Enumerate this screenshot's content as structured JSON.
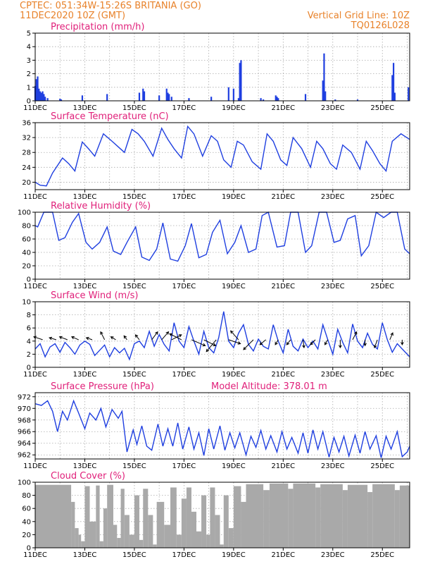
{
  "header": {
    "left_line1": "CPTEC:   051:34W-15:26S  BRITANIA (GO)",
    "left_line2": "11DEC2020 10Z (GMT)",
    "right_line1": "Vertical Grid Line: 10Z",
    "right_line2": "TQ0126L028"
  },
  "colors": {
    "series": "#1f3fe0",
    "cloud": "#a9a9a9",
    "title": "#e0207a",
    "header": "#e8822a"
  },
  "x_tick_labels": [
    "11DEC",
    "13DEC",
    "15DEC",
    "17DEC",
    "19DEC",
    "21DEC",
    "23DEC",
    "25DEC"
  ],
  "chart_data": [
    {
      "type": "bar",
      "title": "Precipitation (mm/h)",
      "ylim": [
        0,
        5
      ],
      "yticks": [
        0,
        1,
        2,
        3,
        4,
        5
      ],
      "x_days": [
        0,
        0.05,
        0.1,
        0.15,
        0.2,
        0.25,
        0.3,
        0.35,
        0.4,
        0.5,
        1.0,
        1.05,
        1.9,
        2.9,
        4.2,
        4.35,
        4.4,
        5.0,
        5.3,
        5.35,
        5.4,
        5.5,
        6.2,
        7.1,
        7.8,
        8.0,
        8.2,
        8.25,
        8.3,
        9.1,
        9.2,
        9.7,
        9.75,
        9.8,
        10.9,
        11.6,
        11.65,
        11.7,
        12.1,
        13.0,
        14.4,
        14.45,
        14.5,
        15.05
      ],
      "values": [
        1.1,
        1.6,
        1.8,
        0.9,
        0.7,
        0.6,
        0.7,
        0.5,
        0.3,
        0.2,
        0.15,
        0.1,
        0.4,
        0.5,
        0.6,
        0.9,
        0.7,
        0.4,
        0.9,
        0.6,
        0.5,
        0.3,
        0.2,
        0.3,
        1.0,
        0.9,
        0.2,
        2.8,
        3.0,
        0.2,
        0.1,
        0.4,
        0.3,
        0.2,
        0.5,
        1.5,
        3.5,
        0.7,
        0.1,
        0.1,
        1.9,
        2.8,
        0.6,
        1.0
      ]
    },
    {
      "type": "line",
      "title": "Surface Temperature (nC)",
      "ylim": [
        18,
        36
      ],
      "yticks": [
        20,
        24,
        28,
        32,
        36
      ],
      "x_days": [
        0,
        0.2,
        0.45,
        0.7,
        1.1,
        1.35,
        1.6,
        1.9,
        2.15,
        2.4,
        2.75,
        3.1,
        3.35,
        3.6,
        3.9,
        4.15,
        4.4,
        4.75,
        5.1,
        5.35,
        5.6,
        5.9,
        6.15,
        6.4,
        6.75,
        7.1,
        7.35,
        7.6,
        7.9,
        8.15,
        8.4,
        8.75,
        9.1,
        9.35,
        9.6,
        9.9,
        10.15,
        10.4,
        10.75,
        11.1,
        11.35,
        11.6,
        11.9,
        12.15,
        12.4,
        12.75,
        13.1,
        13.35,
        13.6,
        13.9,
        14.15,
        14.4,
        14.75,
        15.1
      ],
      "values": [
        20.0,
        19.2,
        19.0,
        22.5,
        26.5,
        25.0,
        23.0,
        30.8,
        29.0,
        27.0,
        33.0,
        31.0,
        29.5,
        28.0,
        34.2,
        33.0,
        31.0,
        27.0,
        34.5,
        31.5,
        29.0,
        26.5,
        35.0,
        33.0,
        27.0,
        32.5,
        31.0,
        26.0,
        24.0,
        31.0,
        30.0,
        25.5,
        23.5,
        33.0,
        31.0,
        26.0,
        24.5,
        32.0,
        29.0,
        24.0,
        31.0,
        29.0,
        25.0,
        23.5,
        30.0,
        28.0,
        23.5,
        31.0,
        28.5,
        25.0,
        23.0,
        31.0,
        33.0,
        31.5
      ]
    },
    {
      "type": "line",
      "title": "Relative Humidity (%)",
      "ylim": [
        0,
        100
      ],
      "yticks": [
        0,
        20,
        40,
        60,
        80,
        100
      ],
      "x_days": [
        0,
        0.1,
        0.35,
        0.7,
        0.95,
        1.2,
        1.5,
        1.75,
        2.05,
        2.3,
        2.6,
        2.9,
        3.15,
        3.45,
        3.7,
        4.05,
        4.3,
        4.6,
        4.9,
        5.15,
        5.45,
        5.75,
        6.05,
        6.3,
        6.6,
        6.9,
        7.15,
        7.45,
        7.75,
        8.05,
        8.3,
        8.6,
        8.9,
        9.15,
        9.4,
        9.75,
        10.05,
        10.3,
        10.6,
        10.9,
        11.15,
        11.45,
        11.75,
        12.05,
        12.3,
        12.6,
        12.9,
        13.15,
        13.45,
        13.75,
        14.05,
        14.35,
        14.6,
        14.9,
        15.1
      ],
      "values": [
        80,
        78,
        100,
        100,
        58,
        62,
        85,
        98,
        55,
        45,
        55,
        78,
        42,
        37,
        55,
        78,
        33,
        28,
        45,
        84,
        30,
        27,
        50,
        83,
        32,
        37,
        70,
        88,
        38,
        55,
        80,
        40,
        45,
        95,
        100,
        48,
        50,
        100,
        100,
        40,
        50,
        100,
        100,
        55,
        58,
        90,
        95,
        35,
        50,
        100,
        92,
        100,
        100,
        45,
        38
      ]
    },
    {
      "type": "line",
      "title": "Surface Wind (m/s)",
      "ylim": [
        0,
        10
      ],
      "yticks": [
        0,
        2,
        4,
        6,
        8,
        10
      ],
      "x_days": [
        0,
        0.2,
        0.4,
        0.6,
        0.8,
        1.0,
        1.2,
        1.4,
        1.6,
        1.8,
        2.0,
        2.2,
        2.4,
        2.6,
        2.8,
        3.0,
        3.2,
        3.4,
        3.6,
        3.8,
        4.0,
        4.2,
        4.4,
        4.6,
        4.8,
        5.0,
        5.2,
        5.4,
        5.6,
        5.8,
        6.0,
        6.2,
        6.4,
        6.6,
        6.8,
        7.0,
        7.2,
        7.4,
        7.6,
        7.8,
        8.0,
        8.2,
        8.4,
        8.6,
        8.8,
        9.0,
        9.2,
        9.4,
        9.6,
        9.8,
        10.0,
        10.2,
        10.4,
        10.6,
        10.8,
        11.0,
        11.2,
        11.4,
        11.6,
        11.8,
        12.0,
        12.2,
        12.4,
        12.6,
        12.8,
        13.0,
        13.2,
        13.4,
        13.6,
        13.8,
        14.0,
        14.2,
        14.4,
        14.6,
        14.8,
        15.1
      ],
      "values": [
        2.8,
        3.6,
        1.6,
        3.1,
        3.6,
        2.3,
        3.8,
        3.0,
        2.0,
        3.4,
        4.0,
        3.5,
        1.8,
        2.6,
        3.4,
        1.6,
        3.0,
        2.2,
        2.9,
        1.2,
        3.6,
        4.0,
        3.0,
        5.5,
        3.2,
        5.0,
        3.5,
        2.5,
        6.8,
        4.0,
        3.0,
        6.2,
        4.0,
        2.0,
        5.5,
        3.0,
        2.2,
        4.5,
        8.5,
        4.0,
        3.0,
        5.2,
        6.5,
        3.5,
        2.5,
        4.3,
        3.2,
        2.8,
        6.5,
        4.0,
        2.2,
        5.8,
        3.2,
        2.5,
        4.3,
        3.0,
        4.0,
        2.8,
        6.5,
        4.2,
        2.0,
        5.8,
        3.8,
        2.2,
        6.6,
        4.0,
        3.0,
        5.2,
        3.5,
        2.8,
        6.8,
        4.2,
        2.3,
        3.6,
        2.8,
        1.6
      ],
      "arrows": {
        "x_days": [
          0.3,
          0.85,
          1.3,
          1.75,
          2.3,
          2.8,
          3.25,
          3.7,
          4.2,
          4.7,
          5.1,
          5.5,
          5.9,
          6.3,
          6.8,
          7.3,
          7.8,
          8.2,
          8.8,
          9.3,
          9.8,
          10.3,
          10.8,
          11.3,
          11.8,
          12.3,
          12.8,
          13.3,
          13.8,
          14.3,
          14.8
        ],
        "u": [
          -0.9,
          -0.7,
          -0.8,
          -0.7,
          -0.6,
          -0.4,
          -0.5,
          -0.3,
          -0.4,
          0.6,
          0.7,
          1.0,
          -1.2,
          1.4,
          1.2,
          -1.0,
          1.2,
          -0.8,
          -1.0,
          -0.6,
          -0.3,
          -0.4,
          0.1,
          -0.5,
          -0.3,
          0.0,
          0.4,
          0.0,
          -0.3,
          0.3,
          0.0
        ],
        "v": [
          0.3,
          0.2,
          0.3,
          0.3,
          0.2,
          0.8,
          0.3,
          0.4,
          0.5,
          0.8,
          0.8,
          0.5,
          0.6,
          -0.6,
          -0.6,
          -1.2,
          -0.4,
          0.9,
          -1.0,
          -0.5,
          -0.5,
          -0.5,
          -0.8,
          -0.5,
          -0.5,
          -0.8,
          0.8,
          -0.6,
          -0.8,
          0.7,
          -0.5
        ]
      }
    },
    {
      "type": "line",
      "title": "Surface Pressure (hPa)",
      "subtitle": "Model Altitude: 378.01 m",
      "ylim": [
        961.3,
        972.7
      ],
      "yticks": [
        962,
        964,
        966,
        968,
        970,
        972
      ],
      "x_days": [
        0,
        0.25,
        0.5,
        0.7,
        0.9,
        1.1,
        1.3,
        1.55,
        1.75,
        2.0,
        2.2,
        2.45,
        2.65,
        2.85,
        3.1,
        3.35,
        3.5,
        3.7,
        3.95,
        4.1,
        4.3,
        4.5,
        4.7,
        4.95,
        5.15,
        5.35,
        5.55,
        5.75,
        5.95,
        6.2,
        6.4,
        6.6,
        6.8,
        7.0,
        7.2,
        7.45,
        7.65,
        7.85,
        8.05,
        8.25,
        8.5,
        8.7,
        8.9,
        9.1,
        9.3,
        9.5,
        9.75,
        9.95,
        10.15,
        10.35,
        10.6,
        10.8,
        11.0,
        11.2,
        11.4,
        11.6,
        11.85,
        12.05,
        12.25,
        12.45,
        12.65,
        12.9,
        13.1,
        13.3,
        13.5,
        13.75,
        13.95,
        14.15,
        14.35,
        14.6,
        14.8,
        15.0,
        15.1
      ],
      "values": [
        970.8,
        970.5,
        971.3,
        969.5,
        966.0,
        969.5,
        968.0,
        971.3,
        969.2,
        966.5,
        969.2,
        968.0,
        970.0,
        966.8,
        969.8,
        968.3,
        969.5,
        962.5,
        966.3,
        963.8,
        967.0,
        963.5,
        962.8,
        967.3,
        963.5,
        966.5,
        963.5,
        967.5,
        963.0,
        966.8,
        963.0,
        965.8,
        961.9,
        966.5,
        963.0,
        967.0,
        962.8,
        965.8,
        963.2,
        965.8,
        962.0,
        965.2,
        963.3,
        966.2,
        963.0,
        965.3,
        962.5,
        966.0,
        963.0,
        965.0,
        962.3,
        965.8,
        962.3,
        966.3,
        963.0,
        966.0,
        961.6,
        965.0,
        962.5,
        965.2,
        961.8,
        965.4,
        962.3,
        966.0,
        963.0,
        965.3,
        961.5,
        965.2,
        963.0,
        966.0,
        961.7,
        962.5,
        963.5
      ]
    },
    {
      "type": "bar",
      "title": "Cloud Cover (%)",
      "ylim": [
        0,
        100
      ],
      "yticks": [
        0,
        20,
        40,
        60,
        80,
        100
      ],
      "segments": [
        {
          "from": 0.0,
          "to": 1.45,
          "value": 96
        },
        {
          "from": 1.45,
          "to": 1.6,
          "value": 70
        },
        {
          "from": 1.6,
          "to": 1.75,
          "value": 30
        },
        {
          "from": 1.75,
          "to": 1.85,
          "value": 20
        },
        {
          "from": 1.85,
          "to": 2.0,
          "value": 10
        },
        {
          "from": 2.0,
          "to": 2.2,
          "value": 94
        },
        {
          "from": 2.2,
          "to": 2.45,
          "value": 40
        },
        {
          "from": 2.45,
          "to": 2.6,
          "value": 95
        },
        {
          "from": 2.6,
          "to": 2.75,
          "value": 10
        },
        {
          "from": 2.75,
          "to": 2.9,
          "value": 60
        },
        {
          "from": 2.9,
          "to": 3.15,
          "value": 96
        },
        {
          "from": 3.15,
          "to": 3.3,
          "value": 35
        },
        {
          "from": 3.3,
          "to": 3.45,
          "value": 15
        },
        {
          "from": 3.45,
          "to": 3.6,
          "value": 90
        },
        {
          "from": 3.6,
          "to": 3.8,
          "value": 50
        },
        {
          "from": 3.8,
          "to": 4.0,
          "value": 20
        },
        {
          "from": 4.0,
          "to": 4.2,
          "value": 80
        },
        {
          "from": 4.2,
          "to": 4.35,
          "value": 12
        },
        {
          "from": 4.35,
          "to": 4.55,
          "value": 90
        },
        {
          "from": 4.55,
          "to": 4.75,
          "value": 50
        },
        {
          "from": 4.75,
          "to": 4.9,
          "value": 5
        },
        {
          "from": 4.9,
          "to": 5.2,
          "value": 70
        },
        {
          "from": 5.2,
          "to": 5.45,
          "value": 35
        },
        {
          "from": 5.45,
          "to": 5.7,
          "value": 92
        },
        {
          "from": 5.7,
          "to": 5.9,
          "value": 20
        },
        {
          "from": 5.9,
          "to": 6.1,
          "value": 75
        },
        {
          "from": 6.1,
          "to": 6.3,
          "value": 92
        },
        {
          "from": 6.3,
          "to": 6.5,
          "value": 55
        },
        {
          "from": 6.5,
          "to": 6.7,
          "value": 25
        },
        {
          "from": 6.7,
          "to": 6.9,
          "value": 80
        },
        {
          "from": 6.9,
          "to": 7.05,
          "value": 20
        },
        {
          "from": 7.05,
          "to": 7.25,
          "value": 92
        },
        {
          "from": 7.25,
          "to": 7.45,
          "value": 50
        },
        {
          "from": 7.45,
          "to": 7.6,
          "value": 5
        },
        {
          "from": 7.6,
          "to": 7.8,
          "value": 80
        },
        {
          "from": 7.8,
          "to": 8.0,
          "value": 30
        },
        {
          "from": 8.0,
          "to": 8.3,
          "value": 94
        },
        {
          "from": 8.3,
          "to": 8.5,
          "value": 70
        },
        {
          "from": 8.5,
          "to": 9.2,
          "value": 97
        },
        {
          "from": 9.2,
          "to": 9.45,
          "value": 88
        },
        {
          "from": 9.45,
          "to": 10.2,
          "value": 98
        },
        {
          "from": 10.2,
          "to": 10.4,
          "value": 90
        },
        {
          "from": 10.4,
          "to": 11.3,
          "value": 98
        },
        {
          "from": 11.3,
          "to": 11.5,
          "value": 92
        },
        {
          "from": 11.5,
          "to": 12.4,
          "value": 97
        },
        {
          "from": 12.4,
          "to": 12.6,
          "value": 88
        },
        {
          "from": 12.6,
          "to": 13.4,
          "value": 96
        },
        {
          "from": 13.4,
          "to": 13.6,
          "value": 85
        },
        {
          "from": 13.6,
          "to": 14.5,
          "value": 97
        },
        {
          "from": 14.5,
          "to": 14.7,
          "value": 88
        },
        {
          "from": 14.7,
          "to": 15.1,
          "value": 95
        }
      ]
    }
  ]
}
